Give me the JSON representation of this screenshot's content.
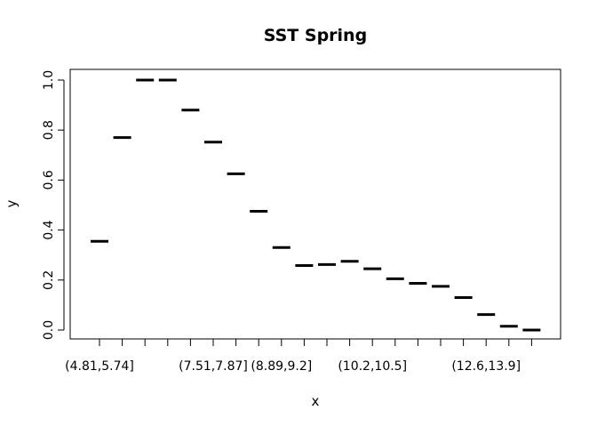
{
  "chart_data": {
    "type": "scatter",
    "title": "SST Spring",
    "xlabel": "x",
    "ylabel": "y",
    "categories": [
      "(4.81,5.74]",
      "",
      "",
      "",
      "",
      "(7.51,7.87]",
      "",
      "",
      "(8.89,9.2]",
      "",
      "",
      "",
      "(10.2,10.5]",
      "",
      "",
      "",
      "",
      "(12.6,13.9]",
      "",
      ""
    ],
    "values": [
      0.355,
      0.77,
      1.0,
      1.0,
      0.88,
      0.752,
      0.625,
      0.475,
      0.33,
      0.258,
      0.262,
      0.275,
      0.245,
      0.205,
      0.187,
      0.175,
      0.13,
      0.062,
      0.015,
      0.0
    ],
    "ylim": [
      0,
      1
    ],
    "yticks": [
      "0.0",
      "0.2",
      "0.4",
      "0.6",
      "0.8",
      "1.0"
    ],
    "grid": false,
    "mark_color": "#000000"
  }
}
